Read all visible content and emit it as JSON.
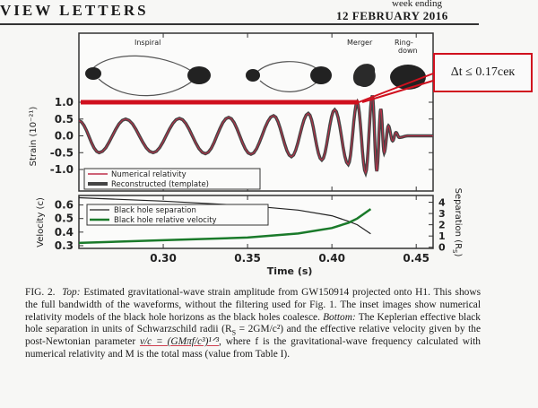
{
  "header": {
    "journal": "VIEW LETTERS",
    "week_label": "week ending",
    "date": "12 FEBRUARY 2016"
  },
  "annotation": {
    "text": "Δt ≤ 0.17сек",
    "color": "#d0101e"
  },
  "chart_data": [
    {
      "type": "line",
      "panel": "top",
      "stage_labels": [
        "Inspiral",
        "Merger",
        "Ring-\ndown"
      ],
      "ylabel": "Strain (10⁻²¹)",
      "yticks": [
        "1.0",
        "0.5",
        "0.0",
        "-0.5",
        "-1.0"
      ],
      "ylim": [
        -1.5,
        1.3
      ],
      "xlim": [
        0.25,
        0.46
      ],
      "legend": {
        "placement": "bottom-left",
        "entries": [
          "Numerical relativity",
          "Reconstructed (template)"
        ]
      },
      "series": [
        {
          "name": "Numerical relativity",
          "color": "#c0304a"
        },
        {
          "name": "Reconstructed (template)",
          "color": "#444444"
        }
      ],
      "extrema": {
        "t": [
          0.25,
          0.262,
          0.2777,
          0.294,
          0.3096,
          0.325,
          0.3388,
          0.352,
          0.3654,
          0.376,
          0.386,
          0.394,
          0.4017,
          0.4097,
          0.415,
          0.42,
          0.424,
          0.4266,
          0.429,
          0.431,
          0.4335,
          0.436,
          0.438,
          0.44,
          0.445,
          0.46
        ],
        "strain": [
          0.45,
          -0.5,
          0.5,
          -0.5,
          0.52,
          -0.53,
          0.55,
          -0.55,
          0.6,
          -0.62,
          0.67,
          -0.72,
          0.78,
          -0.85,
          1.0,
          -1.1,
          1.2,
          -1.05,
          0.8,
          -0.5,
          0.3,
          -0.15,
          0.1,
          -0.05,
          0,
          0
        ]
      },
      "highlight_level": 1.0,
      "highlight_color": "#d0101e"
    },
    {
      "type": "line",
      "panel": "bottom",
      "xlabel": "Time (s)",
      "xticks": [
        "0.30",
        "0.35",
        "0.40",
        "0.45"
      ],
      "xlim": [
        0.25,
        0.46
      ],
      "ylabel": "Velocity (c)",
      "yticks": [
        "0.6",
        "0.5",
        "0.4",
        "0.3"
      ],
      "ylim": [
        0.28,
        0.67
      ],
      "y2label": "Separation (R",
      "y2label_sub": "S",
      "y2ticks": [
        "4",
        "3",
        "2",
        "1",
        "0"
      ],
      "y2lim": [
        -0.1,
        4.6
      ],
      "legend": {
        "placement": "top-left",
        "entries": [
          "Black hole separation",
          "Black hole relative velocity"
        ]
      },
      "series": [
        {
          "name": "Black hole separation",
          "color": "#222222",
          "axis": "right",
          "x": [
            0.25,
            0.3,
            0.35,
            0.38,
            0.4,
            0.41,
            0.415,
            0.423
          ],
          "y": [
            4.4,
            4.1,
            3.7,
            3.3,
            2.8,
            2.3,
            2.0,
            1.2
          ]
        },
        {
          "name": "Black hole relative velocity",
          "color": "#1a7a2a",
          "axis": "left",
          "x": [
            0.25,
            0.3,
            0.35,
            0.38,
            0.4,
            0.41,
            0.415,
            0.423
          ],
          "y": [
            0.32,
            0.34,
            0.36,
            0.39,
            0.43,
            0.47,
            0.5,
            0.57
          ]
        }
      ]
    }
  ],
  "caption": {
    "fig": "FIG. 2.",
    "top_label": "Top:",
    "text1": " Estimated gravitational-wave strain amplitude from GW150914 projected onto H1. This shows the full bandwidth of the waveforms, without the filtering used for Fig. 1. The inset images show numerical relativity models of the black hole horizons as the black holes coalesce. ",
    "bottom_label": "Bottom:",
    "text2": " The Keplerian effective black hole separation in units of Schwarzschild radii (R",
    "sub_s": "S",
    "text3": " = 2GM/c²) and the effective relative velocity given by the post-Newtonian parameter ",
    "formula": "v/c = (GMπf/c³)¹ᐟ³",
    "text4": ", where f is the gravitational-wave frequency calculated with numerical relativity and M is the total mass (value from Table I)."
  }
}
